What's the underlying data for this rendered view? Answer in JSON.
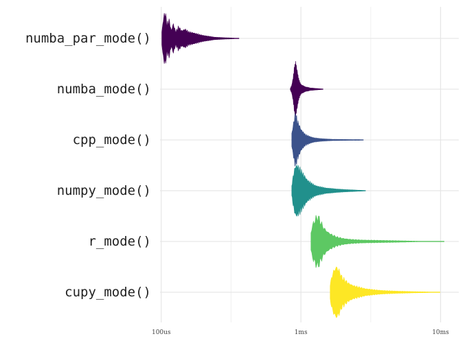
{
  "chart_data": {
    "type": "violin",
    "orientation": "horizontal",
    "x_scale": "log10",
    "x_unit": "seconds",
    "x_ticks": [
      {
        "value": 0.0001,
        "label": "100us"
      },
      {
        "value": 0.001,
        "label": "1ms"
      },
      {
        "value": 0.01,
        "label": "10ms"
      }
    ],
    "xlim": [
      9.8e-05,
      0.0135
    ],
    "grid": true,
    "legend": "none",
    "series": [
      {
        "name": "numba_par_mode()",
        "color": "#440154",
        "min": 0.000101,
        "median": 0.000132,
        "max": 0.00036,
        "profile": [
          [
            0.000101,
            0.25
          ],
          [
            0.000104,
            0.85
          ],
          [
            0.000107,
            1.0
          ],
          [
            0.00011,
            0.55
          ],
          [
            0.000114,
            0.72
          ],
          [
            0.000118,
            0.3
          ],
          [
            0.000122,
            0.58
          ],
          [
            0.000127,
            0.25
          ],
          [
            0.000133,
            0.45
          ],
          [
            0.00014,
            0.3
          ],
          [
            0.000148,
            0.36
          ],
          [
            0.000157,
            0.25
          ],
          [
            0.00017,
            0.22
          ],
          [
            0.00019,
            0.14
          ],
          [
            0.000215,
            0.09
          ],
          [
            0.00024,
            0.05
          ],
          [
            0.00028,
            0.03
          ],
          [
            0.00033,
            0.015
          ],
          [
            0.00036,
            0.005
          ]
        ]
      },
      {
        "name": "numba_mode()",
        "color": "#440154",
        "min": 0.00084,
        "median": 0.00092,
        "max": 0.00144,
        "profile": [
          [
            0.00084,
            0.03
          ],
          [
            0.00086,
            0.15
          ],
          [
            0.00088,
            0.45
          ],
          [
            0.0009,
            0.85
          ],
          [
            0.00092,
            1.0
          ],
          [
            0.00094,
            0.75
          ],
          [
            0.00096,
            0.42
          ],
          [
            0.00099,
            0.22
          ],
          [
            0.00102,
            0.15
          ],
          [
            0.00106,
            0.1
          ],
          [
            0.0011,
            0.08
          ],
          [
            0.00116,
            0.05
          ],
          [
            0.00125,
            0.035
          ],
          [
            0.00135,
            0.02
          ],
          [
            0.00144,
            0.01
          ]
        ]
      },
      {
        "name": "cpp_mode()",
        "color": "#3B528B",
        "min": 0.00086,
        "median": 0.00093,
        "max": 0.0028,
        "profile": [
          [
            0.00086,
            0.25
          ],
          [
            0.00088,
            0.55
          ],
          [
            0.0009,
            0.9
          ],
          [
            0.00092,
            1.0
          ],
          [
            0.00094,
            0.75
          ],
          [
            0.00097,
            0.6
          ],
          [
            0.001,
            0.42
          ],
          [
            0.00104,
            0.3
          ],
          [
            0.00108,
            0.2
          ],
          [
            0.00113,
            0.16
          ],
          [
            0.00118,
            0.12
          ],
          [
            0.00125,
            0.08
          ],
          [
            0.00135,
            0.06
          ],
          [
            0.0015,
            0.04
          ],
          [
            0.0017,
            0.025
          ],
          [
            0.002,
            0.02
          ],
          [
            0.0023,
            0.015
          ],
          [
            0.0026,
            0.015
          ],
          [
            0.0028,
            0.01
          ]
        ]
      },
      {
        "name": "numpy_mode()",
        "color": "#21908C",
        "min": 0.00086,
        "median": 0.00096,
        "max": 0.0029,
        "profile": [
          [
            0.00086,
            0.2
          ],
          [
            0.00088,
            0.55
          ],
          [
            0.00091,
            0.95
          ],
          [
            0.00094,
            1.0
          ],
          [
            0.00098,
            0.85
          ],
          [
            0.00102,
            0.7
          ],
          [
            0.00107,
            0.55
          ],
          [
            0.00112,
            0.4
          ],
          [
            0.00118,
            0.3
          ],
          [
            0.00125,
            0.22
          ],
          [
            0.00135,
            0.16
          ],
          [
            0.0015,
            0.11
          ],
          [
            0.0017,
            0.08
          ],
          [
            0.002,
            0.05
          ],
          [
            0.0024,
            0.03
          ],
          [
            0.0029,
            0.01
          ]
        ]
      },
      {
        "name": "r_mode()",
        "color": "#5DC863",
        "min": 0.00118,
        "median": 0.00135,
        "max": 0.0106,
        "profile": [
          [
            0.00118,
            0.35
          ],
          [
            0.00122,
            0.7
          ],
          [
            0.00127,
            0.88
          ],
          [
            0.00132,
            1.0
          ],
          [
            0.00138,
            0.8
          ],
          [
            0.00145,
            0.55
          ],
          [
            0.00155,
            0.38
          ],
          [
            0.00165,
            0.28
          ],
          [
            0.0018,
            0.18
          ],
          [
            0.002,
            0.12
          ],
          [
            0.0023,
            0.08
          ],
          [
            0.0027,
            0.06
          ],
          [
            0.0032,
            0.05
          ],
          [
            0.004,
            0.04
          ],
          [
            0.005,
            0.03
          ],
          [
            0.0065,
            0.015
          ],
          [
            0.008,
            0.008
          ],
          [
            0.01,
            0.006
          ],
          [
            0.0106,
            0.004
          ]
        ]
      },
      {
        "name": "cupy_mode()",
        "color": "#FDE725",
        "min": 0.00162,
        "median": 0.00183,
        "max": 0.0099,
        "profile": [
          [
            0.00162,
            0.3
          ],
          [
            0.00168,
            0.7
          ],
          [
            0.00174,
            0.9
          ],
          [
            0.0018,
            1.0
          ],
          [
            0.00188,
            0.85
          ],
          [
            0.00196,
            0.6
          ],
          [
            0.00206,
            0.48
          ],
          [
            0.0022,
            0.35
          ],
          [
            0.0024,
            0.25
          ],
          [
            0.0026,
            0.2
          ],
          [
            0.0029,
            0.14
          ],
          [
            0.0033,
            0.1
          ],
          [
            0.0038,
            0.07
          ],
          [
            0.0045,
            0.05
          ],
          [
            0.0055,
            0.035
          ],
          [
            0.007,
            0.02
          ],
          [
            0.0085,
            0.012
          ],
          [
            0.0099,
            0.005
          ]
        ]
      }
    ]
  }
}
